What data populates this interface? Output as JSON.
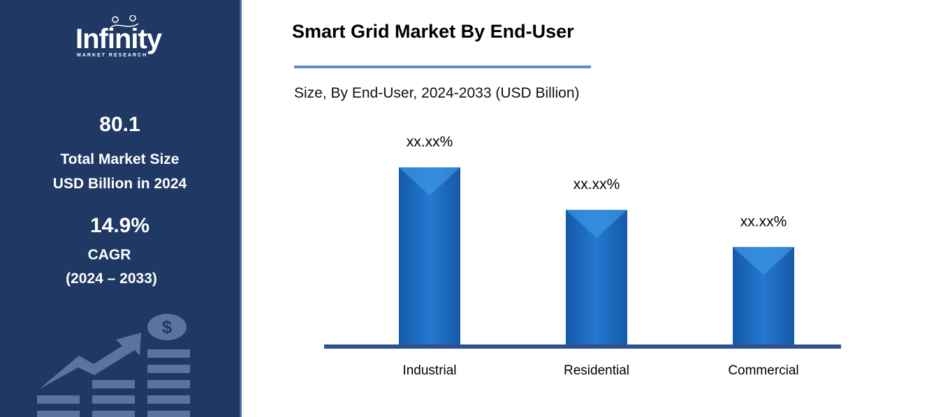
{
  "sidebar": {
    "logo": {
      "name": "Infinity",
      "tagline": "MARKET RESEARCH"
    },
    "market_size_value": "80.1",
    "market_size_label_1": "Total Market Size",
    "market_size_label_2": "USD Billion in 2024",
    "cagr_value": "14.9%",
    "cagr_label": "CAGR",
    "cagr_period": "(2024 – 2033)",
    "illustration_icons": [
      "growth-arrow-icon",
      "dollar-coin-icon",
      "bar-stack-icon"
    ]
  },
  "colors": {
    "sidebar_bg": "#1f3864",
    "bar": "#1f6fc5",
    "axis": "#2f4f8f",
    "title_rule": "#5b8fd0"
  },
  "chart_data": {
    "type": "bar",
    "title": "Smart Grid Market By End-User",
    "subtitle": "Size, By End-User, 2024-2033 (USD Billion)",
    "categories": [
      "Industrial",
      "Residential",
      "Commercial"
    ],
    "values": [
      100,
      76,
      55
    ],
    "data_labels": [
      "xx.xx%",
      "xx.xx%",
      "xx.xx%"
    ],
    "xlabel": "",
    "ylabel": "",
    "grid": false,
    "legend": "none"
  }
}
